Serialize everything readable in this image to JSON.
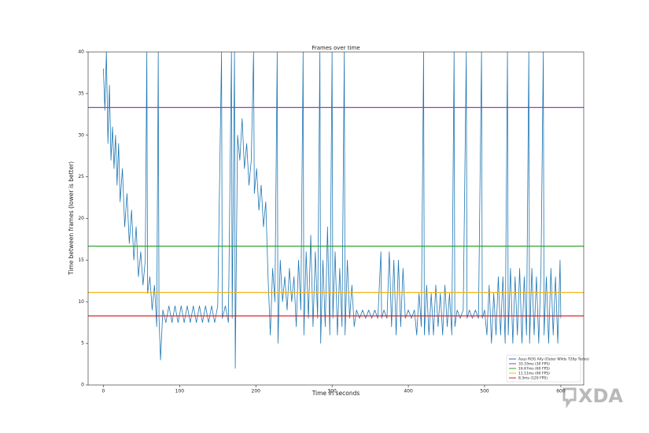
{
  "chart_data": {
    "type": "line",
    "title": "Frames over time",
    "xlabel": "Time in seconds",
    "ylabel": "Time between frames (lower is better)",
    "x": [
      0,
      2,
      4,
      6,
      8,
      10,
      12,
      14,
      16,
      18,
      20,
      22,
      25,
      28,
      31,
      34,
      37,
      40,
      43,
      46,
      49,
      52,
      55,
      57,
      58,
      61,
      64,
      67,
      70,
      72,
      73,
      75,
      78,
      82,
      86,
      90,
      94,
      98,
      102,
      106,
      110,
      114,
      118,
      122,
      126,
      130,
      134,
      138,
      142,
      146,
      150,
      155,
      156,
      160,
      164,
      168,
      169,
      172,
      173,
      176,
      179,
      182,
      185,
      188,
      191,
      194,
      197,
      198,
      201,
      204,
      207,
      210,
      213,
      216,
      219,
      222,
      225,
      228,
      229,
      232,
      235,
      238,
      241,
      244,
      247,
      250,
      253,
      256,
      259,
      262,
      263,
      266,
      269,
      272,
      275,
      278,
      281,
      284,
      285,
      288,
      291,
      294,
      297,
      300,
      301,
      304,
      307,
      310,
      313,
      316,
      317,
      320,
      323,
      326,
      329,
      332,
      336,
      340,
      344,
      348,
      352,
      356,
      360,
      364,
      365,
      368,
      372,
      375,
      378,
      381,
      384,
      387,
      390,
      393,
      396,
      400,
      404,
      408,
      411,
      414,
      417,
      420,
      421,
      424,
      427,
      430,
      433,
      436,
      439,
      442,
      445,
      448,
      451,
      454,
      457,
      460,
      461,
      464,
      468,
      472,
      476,
      477,
      480,
      484,
      488,
      492,
      496,
      497,
      500,
      503,
      506,
      509,
      512,
      515,
      518,
      521,
      524,
      527,
      530,
      531,
      534,
      537,
      540,
      543,
      546,
      549,
      552,
      555,
      558,
      559,
      562,
      565,
      568,
      571,
      574,
      577,
      578,
      581,
      584,
      587,
      590,
      593,
      596,
      599,
      600
    ],
    "series": [
      {
        "name": "Asus ROG Ally (Outer Wilds 720p Turbo)",
        "color": "#1f77b4",
        "values": [
          38,
          33,
          40,
          29,
          36,
          27,
          31,
          26,
          30,
          24,
          29,
          22,
          26,
          19,
          23,
          17,
          21,
          15,
          19,
          13,
          16,
          12,
          15,
          40,
          11,
          13,
          9,
          12,
          7,
          40,
          8,
          3,
          9,
          7.5,
          9.5,
          7.5,
          9.5,
          7.5,
          9.5,
          7.5,
          9.5,
          7.5,
          9.5,
          7.5,
          9.5,
          7.5,
          9.5,
          7.5,
          9.5,
          7.5,
          9.5,
          40,
          8,
          9.5,
          7.5,
          40,
          8,
          40,
          2,
          30,
          27,
          32,
          26,
          29,
          24,
          27,
          40,
          23,
          26,
          21,
          24,
          19,
          22,
          13,
          6,
          14,
          10,
          40,
          5,
          15,
          10,
          13,
          9,
          14,
          10,
          13,
          7,
          15,
          9,
          40,
          6,
          16,
          8,
          18,
          7,
          16,
          8,
          40,
          5,
          15,
          7,
          19,
          6,
          40,
          8,
          16,
          6,
          14,
          7,
          40,
          6,
          15,
          8,
          12,
          7,
          9,
          8,
          9,
          8,
          9,
          8,
          9,
          8,
          16,
          8,
          9,
          8,
          16,
          7,
          15,
          6,
          15,
          7,
          14,
          8,
          9,
          8,
          9,
          6,
          11,
          7,
          40,
          6,
          12,
          6,
          11,
          6,
          12,
          7,
          11,
          6,
          12,
          7,
          11,
          6,
          40,
          7,
          9,
          8,
          9,
          40,
          8,
          9,
          8,
          9,
          8,
          40,
          8,
          9,
          6,
          12,
          5,
          11,
          6,
          13,
          6,
          13,
          5,
          40,
          6,
          14,
          5,
          13,
          6,
          14,
          5,
          13,
          6,
          40,
          5,
          14,
          6,
          13,
          5,
          14,
          40,
          6,
          13,
          5,
          14,
          6,
          13,
          5,
          15,
          8
        ]
      }
    ],
    "hlines": [
      {
        "name": "33.33ms (30 FPS)",
        "value": 33.33,
        "color": "#9b3fb5"
      },
      {
        "name": "16.67ms (60 FPS)",
        "value": 16.67,
        "color": "#2ca02c"
      },
      {
        "name": "11.11ms (90 FPS)",
        "value": 11.11,
        "color": "#f2b51c"
      },
      {
        "name": "8.3ms (120 FPS)",
        "value": 8.3,
        "color": "#d62728"
      }
    ],
    "xlim": [
      -20,
      630
    ],
    "ylim": [
      0,
      40
    ],
    "xticks": [
      0,
      100,
      200,
      300,
      400,
      500,
      600
    ],
    "yticks": [
      0,
      5,
      10,
      15,
      20,
      25,
      30,
      35,
      40
    ],
    "legend": "lower right"
  },
  "watermark": "XDA"
}
